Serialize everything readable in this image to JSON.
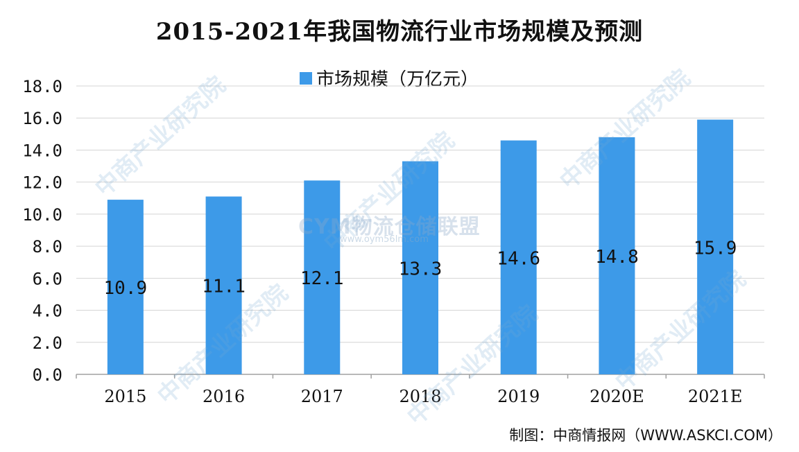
{
  "chart_data": {
    "type": "bar",
    "title": "2015-2021年我国物流行业市场规模及预测",
    "categories": [
      "2015",
      "2016",
      "2017",
      "2018",
      "2019",
      "2020E",
      "2021E"
    ],
    "series": [
      {
        "name": "市场规模（万亿元）",
        "values": [
          10.9,
          11.1,
          12.1,
          13.3,
          14.6,
          14.8,
          15.9
        ],
        "data_labels": [
          "10.9",
          "11.1",
          "12.1",
          "13.3",
          "14.6",
          "14.8",
          "15.9"
        ],
        "color": "#3d9ae8"
      }
    ],
    "ylim": [
      0,
      18
    ],
    "y_ticks": [
      "0.0",
      "2.0",
      "4.0",
      "6.0",
      "8.0",
      "10.0",
      "12.0",
      "14.0",
      "16.0",
      "18.0"
    ],
    "y_tick_values": [
      0,
      2,
      4,
      6,
      8,
      10,
      12,
      14,
      16,
      18
    ],
    "grid": true,
    "legend_position": "top-center"
  },
  "source": "制图：中商情报网（WWW.ASKCI.COM）",
  "watermark": {
    "text": "中商产业研究院",
    "overlay_text": "CYM物流仓储联盟",
    "overlay_url": "www.oym56lm.com"
  }
}
